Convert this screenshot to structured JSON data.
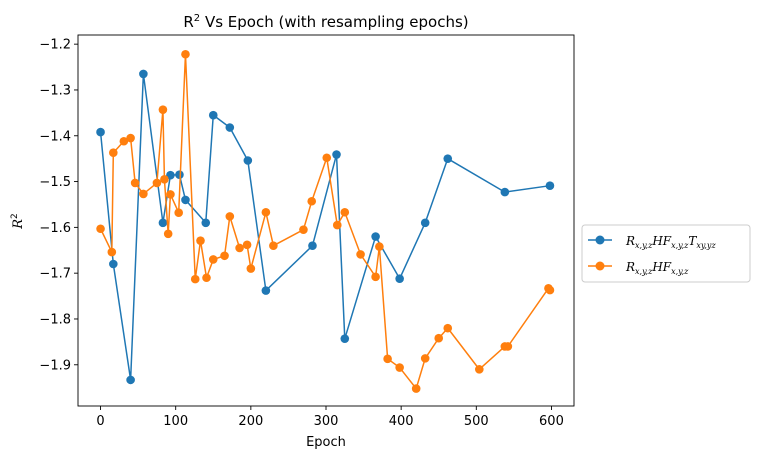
{
  "chart_data": {
    "type": "line",
    "title": "R² Vs Epoch (with resampling epochs)",
    "xlabel": "Epoch",
    "ylabel": "R²",
    "xlim": [
      -30,
      630
    ],
    "ylim": [
      -1.99,
      -1.18
    ],
    "xticks": [
      0,
      100,
      200,
      300,
      400,
      500,
      600
    ],
    "yticks": [
      -1.9,
      -1.8,
      -1.7,
      -1.6,
      -1.5,
      -1.4,
      -1.3,
      -1.2
    ],
    "xtick_labels": [
      "0",
      "100",
      "200",
      "300",
      "400",
      "500",
      "600"
    ],
    "ytick_labels": [
      "−1.9",
      "−1.8",
      "−1.7",
      "−1.6",
      "−1.5",
      "−1.4",
      "−1.3",
      "−1.2"
    ],
    "grid": false,
    "legend_position": "outside-right",
    "series": [
      {
        "name": "R_{x,y,z}HF_{x,y,z}T_{xy,yz}",
        "color": "#1f77b4",
        "x": [
          0,
          17,
          40,
          57,
          83,
          93,
          105,
          113,
          140,
          150,
          172,
          196,
          220,
          282,
          314,
          325,
          366,
          398,
          432,
          462,
          538,
          598
        ],
        "y": [
          -1.392,
          -1.68,
          -1.933,
          -1.265,
          -1.59,
          -1.486,
          -1.485,
          -1.54,
          -1.59,
          -1.355,
          -1.382,
          -1.454,
          -1.738,
          -1.64,
          -1.441,
          -1.843,
          -1.62,
          -1.712,
          -1.59,
          -1.45,
          -1.523,
          -1.509
        ]
      },
      {
        "name": "R_{x,y,z}HF_{x,y,z}",
        "color": "#ff7f0e",
        "x": [
          0,
          15,
          17,
          31,
          40,
          46,
          57,
          75,
          83,
          85,
          90,
          93,
          104,
          113,
          126,
          133,
          141,
          150,
          165,
          172,
          185,
          195,
          200,
          220,
          230,
          270,
          281,
          301,
          315,
          325,
          346,
          366,
          371,
          382,
          398,
          420,
          432,
          450,
          462,
          504,
          538,
          542,
          596,
          598
        ],
        "y": [
          -1.603,
          -1.654,
          -1.437,
          -1.412,
          -1.405,
          -1.503,
          -1.527,
          -1.503,
          -1.343,
          -1.495,
          -1.614,
          -1.528,
          -1.568,
          -1.222,
          -1.713,
          -1.629,
          -1.71,
          -1.67,
          -1.662,
          -1.576,
          -1.645,
          -1.638,
          -1.69,
          -1.567,
          -1.64,
          -1.605,
          -1.543,
          -1.448,
          -1.595,
          -1.567,
          -1.659,
          -1.708,
          -1.642,
          -1.887,
          -1.906,
          -1.952,
          -1.886,
          -1.842,
          -1.82,
          -1.91,
          -1.86,
          -1.86,
          -1.733,
          -1.737
        ]
      }
    ]
  },
  "legend": {
    "items": [
      {
        "main": "R",
        "sub1": "x,y,z",
        "mid": "HF",
        "sub2": "x,y,z",
        "tail": "T",
        "sub3": "xy,yz"
      },
      {
        "main": "R",
        "sub1": "x,y,z",
        "mid": "HF",
        "sub2": "x,y,z",
        "tail": "",
        "sub3": ""
      }
    ]
  }
}
